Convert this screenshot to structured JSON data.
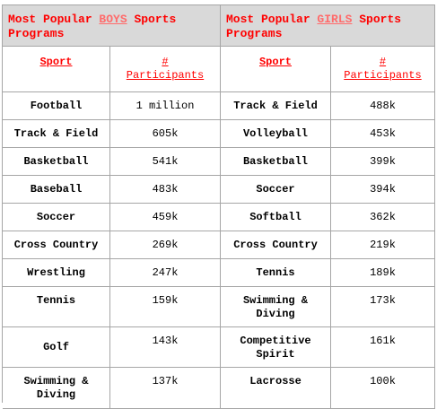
{
  "boys": {
    "title_pre": "Most Popular ",
    "title_em": "BOYS",
    "title_post": " Sports Programs",
    "col_sport": "Sport",
    "col_participants_sym": "#",
    "col_participants": "Participants",
    "rows": [
      {
        "sport": "Football",
        "count": "1 million"
      },
      {
        "sport": "Track & Field",
        "count": "605k"
      },
      {
        "sport": "Basketball",
        "count": "541k"
      },
      {
        "sport": "Baseball",
        "count": "483k"
      },
      {
        "sport": "Soccer",
        "count": "459k"
      },
      {
        "sport": "Cross Country",
        "count": "269k"
      },
      {
        "sport": "Wrestling",
        "count": "247k"
      },
      {
        "sport": "Tennis",
        "count": "159k"
      },
      {
        "sport": "Golf",
        "count": "143k"
      },
      {
        "sport": "Swimming & Diving",
        "count": "137k"
      }
    ]
  },
  "girls": {
    "title_pre": "Most Popular ",
    "title_em": "GIRLS",
    "title_post": " Sports Programs",
    "col_sport": "Sport",
    "col_participants_sym": "#",
    "col_participants": "Participants",
    "rows": [
      {
        "sport": "Track & Field",
        "count": "488k"
      },
      {
        "sport": "Volleyball",
        "count": "453k"
      },
      {
        "sport": "Basketball",
        "count": "399k"
      },
      {
        "sport": "Soccer",
        "count": "394k"
      },
      {
        "sport": "Softball",
        "count": "362k"
      },
      {
        "sport": "Cross Country",
        "count": "219k"
      },
      {
        "sport": "Tennis",
        "count": "189k"
      },
      {
        "sport": "Swimming & Diving",
        "count": "173k"
      },
      {
        "sport": "Competitive Spirit",
        "count": "161k"
      },
      {
        "sport": "Lacrosse",
        "count": "100k"
      }
    ]
  },
  "colors": {
    "header_red": "#ff0000",
    "title_bg": "#d9d9d9",
    "border": "#a6a6a6"
  }
}
